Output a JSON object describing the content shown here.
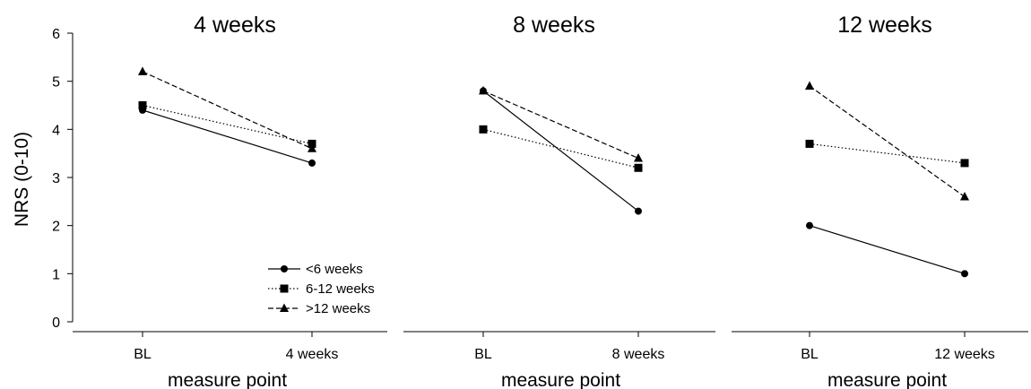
{
  "figure": {
    "ylabel": "NRS (0-10)",
    "yticks": [
      "0",
      "1",
      "2",
      "3",
      "4",
      "5",
      "6"
    ]
  },
  "legend": {
    "entries": [
      {
        "label": "<6 weeks",
        "marker": "circle",
        "dash": "solid"
      },
      {
        "label": "6-12 weeks",
        "marker": "square",
        "dash": "dotted"
      },
      {
        "label": ">12 weeks",
        "marker": "triangle",
        "dash": "dashed"
      }
    ]
  },
  "chart_data": [
    {
      "type": "line",
      "title": "4 weeks",
      "xlabel": "measure point",
      "ylabel": "NRS (0-10)",
      "categories": [
        "BL",
        "4 weeks"
      ],
      "ylim": [
        0,
        6
      ],
      "series": [
        {
          "name": "<6 weeks",
          "values": [
            4.4,
            3.3
          ]
        },
        {
          "name": "6-12 weeks",
          "values": [
            4.5,
            3.7
          ]
        },
        {
          "name": ">12 weeks",
          "values": [
            5.2,
            3.6
          ]
        }
      ]
    },
    {
      "type": "line",
      "title": "8 weeks",
      "xlabel": "measure point",
      "categories": [
        "BL",
        "8 weeks"
      ],
      "ylim": [
        0,
        6
      ],
      "series": [
        {
          "name": "<6 weeks",
          "values": [
            4.8,
            2.3
          ]
        },
        {
          "name": "6-12 weeks",
          "values": [
            4.0,
            3.2
          ]
        },
        {
          "name": ">12 weeks",
          "values": [
            4.8,
            3.4
          ]
        }
      ]
    },
    {
      "type": "line",
      "title": "12 weeks",
      "xlabel": "measure point",
      "categories": [
        "BL",
        "12 weeks"
      ],
      "ylim": [
        0,
        6
      ],
      "series": [
        {
          "name": "<6 weeks",
          "values": [
            2.0,
            1.0
          ]
        },
        {
          "name": "6-12 weeks",
          "values": [
            3.7,
            3.3
          ]
        },
        {
          "name": ">12 weeks",
          "values": [
            4.9,
            2.6
          ]
        }
      ]
    }
  ]
}
